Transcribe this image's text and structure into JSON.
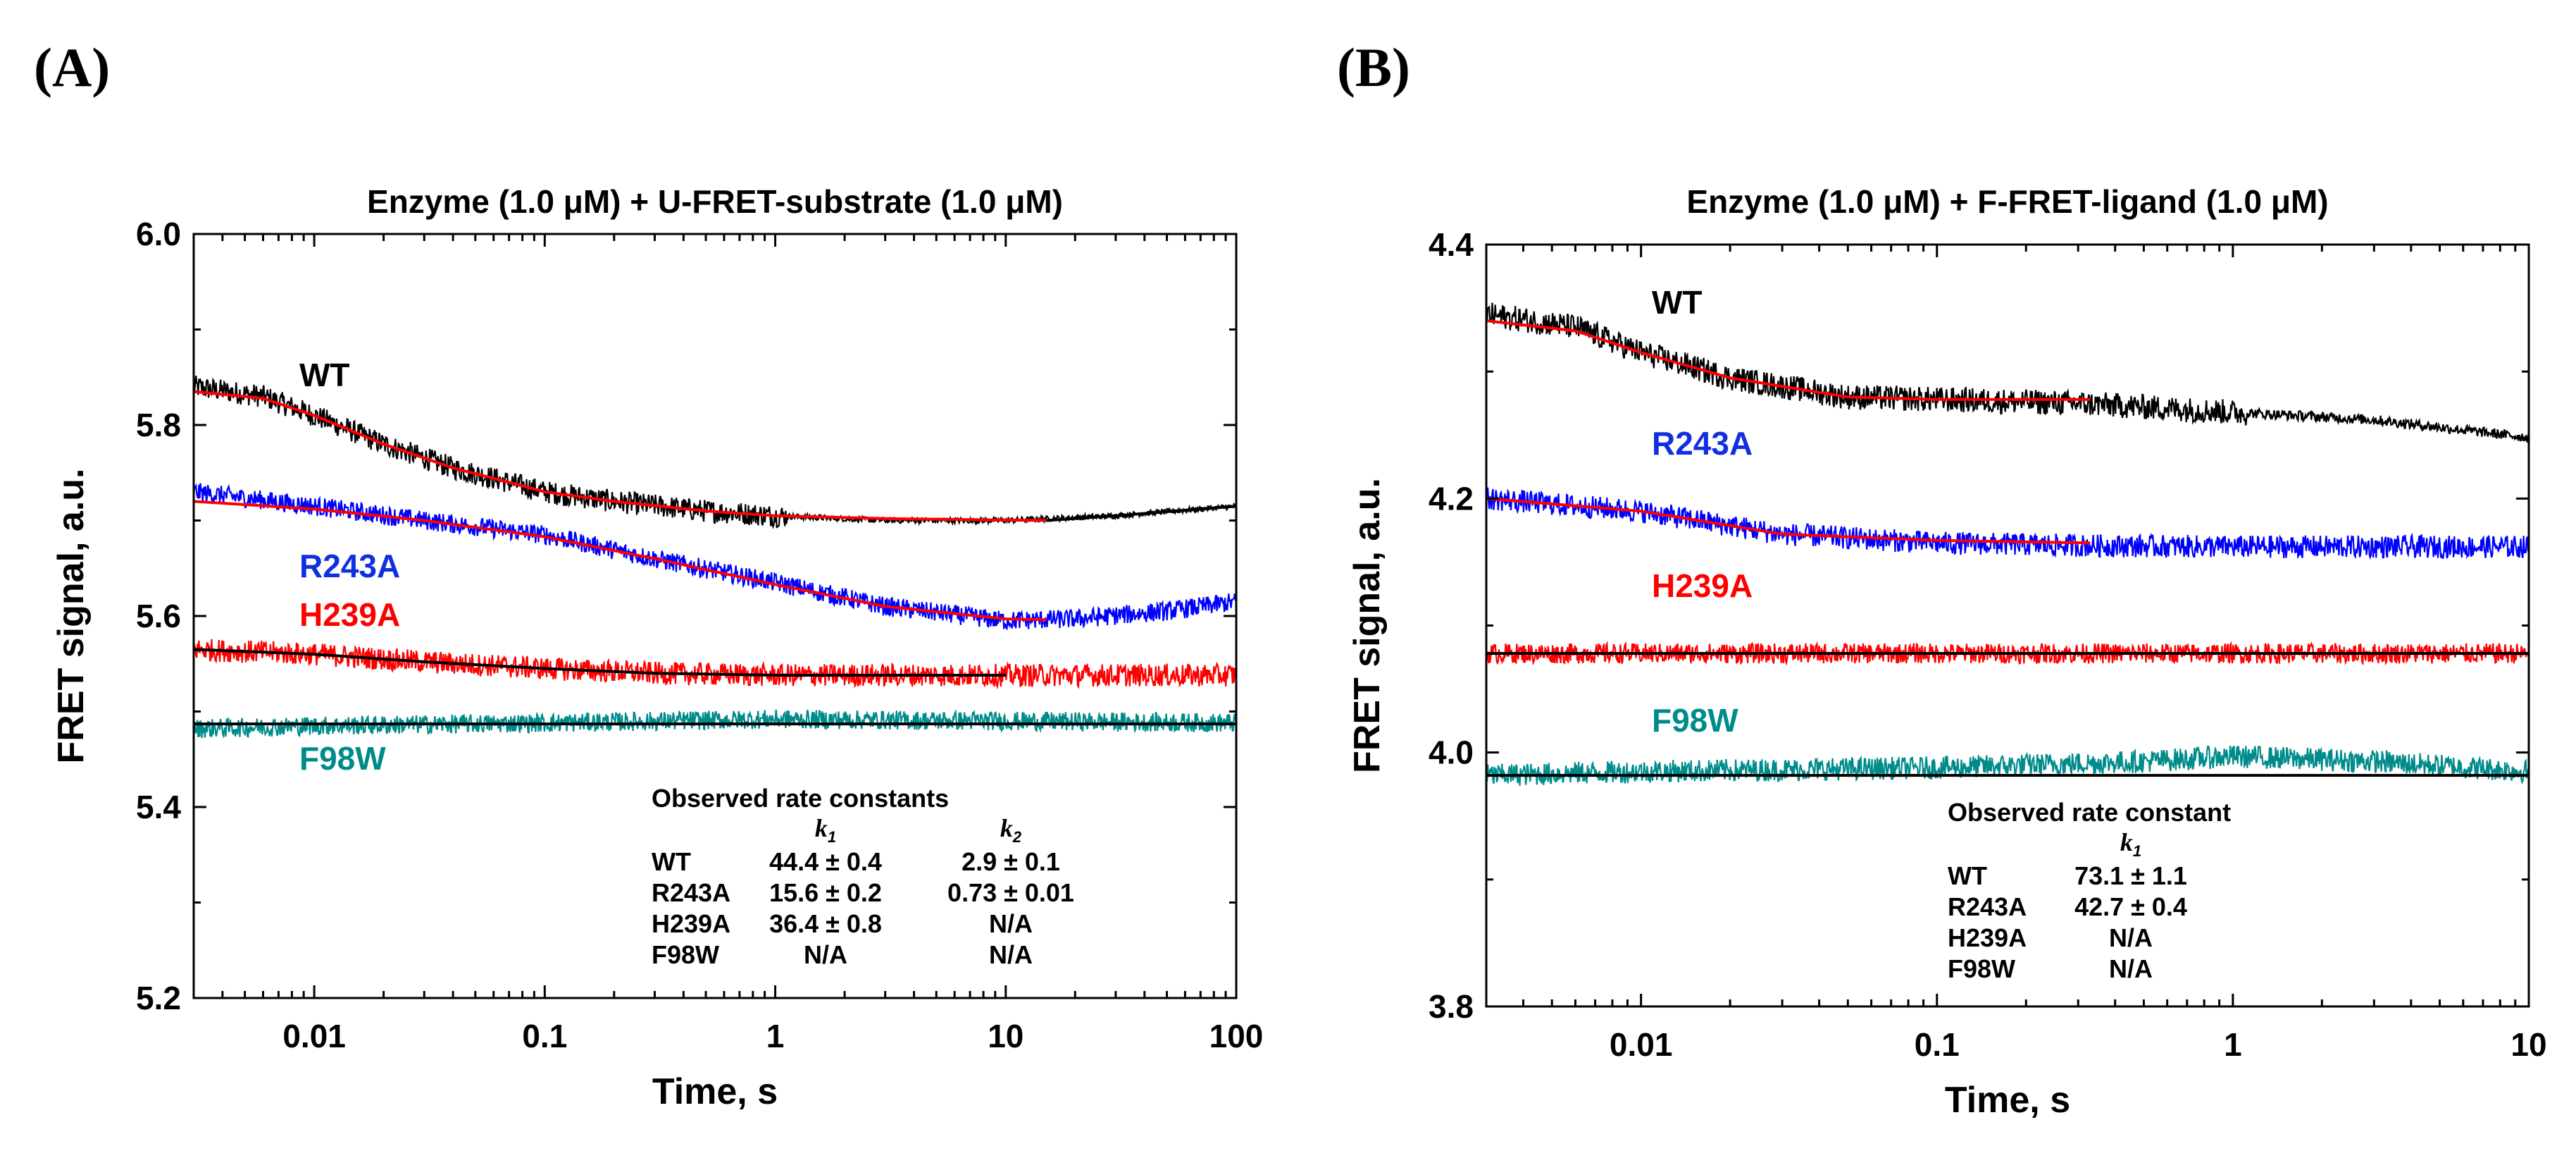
{
  "chart_data": [
    {
      "type": "line",
      "panel_label": "(A)",
      "title": "Enzyme (1.0 μM) + U-FRET-substrate (1.0 μM)",
      "xlabel": "Time, s",
      "ylabel": "FRET signal, a.u.",
      "xscale": "log",
      "xlim": [
        0.003,
        100
      ],
      "ylim": [
        5.2,
        6.0
      ],
      "xticks": [
        0.01,
        0.1,
        1,
        10,
        100
      ],
      "xtick_labels": [
        "0.01",
        "0.1",
        "1",
        "10",
        "100"
      ],
      "yticks": [
        5.2,
        5.4,
        5.6,
        5.8,
        6.0
      ],
      "ytick_labels": [
        "5.2",
        "5.4",
        "5.6",
        "5.8",
        "6.0"
      ],
      "series": [
        {
          "name": "WT",
          "color": "#000000",
          "label_color": "#000000",
          "noise": 0.012,
          "late_noise": 0.003,
          "x": [
            0.003,
            0.006,
            0.01,
            0.02,
            0.04,
            0.07,
            0.1,
            0.2,
            0.5,
            1,
            3,
            10,
            30,
            100
          ],
          "y": [
            5.84,
            5.83,
            5.81,
            5.78,
            5.755,
            5.74,
            5.73,
            5.72,
            5.71,
            5.705,
            5.7,
            5.7,
            5.705,
            5.715
          ]
        },
        {
          "name": "R243A",
          "color": "#0000ff",
          "label_color": "#1030e0",
          "noise": 0.01,
          "late_noise": 0.01,
          "x": [
            0.003,
            0.01,
            0.03,
            0.1,
            0.3,
            1,
            3,
            10,
            20,
            50,
            100
          ],
          "y": [
            5.73,
            5.715,
            5.7,
            5.685,
            5.66,
            5.635,
            5.61,
            5.595,
            5.597,
            5.605,
            5.615
          ]
        },
        {
          "name": "H239A",
          "color": "#ff0000",
          "label_color": "#ff0000",
          "noise": 0.012,
          "late_noise": 0.012,
          "x": [
            0.003,
            0.01,
            0.03,
            0.1,
            0.3,
            1,
            10,
            100
          ],
          "y": [
            5.565,
            5.56,
            5.552,
            5.545,
            5.54,
            5.538,
            5.538,
            5.538
          ]
        },
        {
          "name": "F98W",
          "color": "#008b8b",
          "label_color": "#008b8b",
          "noise": 0.01,
          "late_noise": 0.01,
          "x": [
            0.003,
            0.01,
            0.1,
            1,
            10,
            100
          ],
          "y": [
            5.482,
            5.485,
            5.488,
            5.492,
            5.49,
            5.488
          ]
        }
      ],
      "fits": [
        {
          "color": "#ff0000",
          "x": [
            0.003,
            0.006,
            0.01,
            0.02,
            0.04,
            0.07,
            0.1,
            0.2,
            0.5,
            1,
            3,
            15
          ],
          "y": [
            5.835,
            5.828,
            5.81,
            5.78,
            5.755,
            5.74,
            5.73,
            5.72,
            5.71,
            5.705,
            5.702,
            5.7
          ]
        },
        {
          "color": "#000000",
          "x": [
            15,
            30,
            100
          ],
          "y": [
            5.7,
            5.705,
            5.715
          ]
        },
        {
          "color": "#ff0000",
          "x": [
            0.003,
            0.01,
            0.03,
            0.1,
            0.3,
            1,
            3,
            10,
            15
          ],
          "y": [
            5.72,
            5.712,
            5.7,
            5.683,
            5.66,
            5.633,
            5.61,
            5.597,
            5.596
          ]
        },
        {
          "color": "#000000",
          "x": [
            0.003,
            0.01,
            0.03,
            0.1,
            0.3,
            1,
            10
          ],
          "y": [
            5.565,
            5.56,
            5.552,
            5.545,
            5.54,
            5.538,
            5.538
          ]
        },
        {
          "color": "#000000",
          "x": [
            0.003,
            100
          ],
          "y": [
            5.487,
            5.487
          ]
        }
      ],
      "rate_table": {
        "title": "Observed rate constants",
        "columns": [
          "k1",
          "k2"
        ],
        "rows": [
          {
            "name": "WT",
            "values": [
              "44.4 ± 0.4",
              "2.9 ± 0.1"
            ]
          },
          {
            "name": "R243A",
            "values": [
              "15.6 ± 0.2",
              "0.73 ± 0.01"
            ]
          },
          {
            "name": "H239A",
            "values": [
              "36.4 ± 0.8",
              "N/A"
            ]
          },
          {
            "name": "F98W",
            "values": [
              "N/A",
              "N/A"
            ]
          }
        ]
      }
    },
    {
      "type": "line",
      "panel_label": "(B)",
      "title": "Enzyme (1.0 μM) + F-FRET-ligand (1.0 μM)",
      "xlabel": "Time, s",
      "ylabel": "FRET signal, a.u.",
      "xscale": "log",
      "xlim": [
        0.003,
        10
      ],
      "ylim": [
        3.8,
        4.4
      ],
      "xticks": [
        0.01,
        0.1,
        1,
        10
      ],
      "xtick_labels": [
        "0.01",
        "0.1",
        "1",
        "10"
      ],
      "yticks": [
        3.8,
        4.0,
        4.2,
        4.4
      ],
      "ytick_labels": [
        "3.8",
        "4.0",
        "4.2",
        "4.4"
      ],
      "series": [
        {
          "name": "WT",
          "color": "#000000",
          "label_color": "#000000",
          "noise": 0.01,
          "late_noise": 0.004,
          "x": [
            0.003,
            0.006,
            0.01,
            0.02,
            0.05,
            0.1,
            0.3,
            1,
            3,
            10
          ],
          "y": [
            4.345,
            4.335,
            4.315,
            4.295,
            4.28,
            4.278,
            4.275,
            4.268,
            4.262,
            4.248
          ]
        },
        {
          "name": "R243A",
          "color": "#0000ff",
          "label_color": "#1030e0",
          "noise": 0.009,
          "late_noise": 0.009,
          "x": [
            0.003,
            0.01,
            0.03,
            0.1,
            0.3,
            1,
            10
          ],
          "y": [
            4.2,
            4.19,
            4.172,
            4.165,
            4.163,
            4.162,
            4.162
          ]
        },
        {
          "name": "H239A",
          "color": "#ff0000",
          "label_color": "#ff0000",
          "noise": 0.008,
          "late_noise": 0.008,
          "x": [
            0.003,
            0.1,
            1,
            10
          ],
          "y": [
            4.078,
            4.078,
            4.078,
            4.078
          ]
        },
        {
          "name": "F98W",
          "color": "#008b8b",
          "label_color": "#008b8b",
          "noise": 0.009,
          "late_noise": 0.009,
          "x": [
            0.003,
            0.01,
            0.1,
            0.5,
            1,
            3,
            10
          ],
          "y": [
            3.982,
            3.985,
            3.988,
            3.993,
            3.997,
            3.993,
            3.985
          ]
        }
      ],
      "fits": [
        {
          "color": "#ff0000",
          "x": [
            0.003,
            0.006,
            0.01,
            0.02,
            0.05,
            0.1,
            0.33
          ],
          "y": [
            4.34,
            4.332,
            4.315,
            4.295,
            4.28,
            4.278,
            4.278
          ]
        },
        {
          "color": "#ff0000",
          "x": [
            0.003,
            0.01,
            0.03,
            0.1,
            0.33
          ],
          "y": [
            4.2,
            4.19,
            4.172,
            4.167,
            4.165
          ]
        },
        {
          "color": "#000000",
          "x": [
            0.003,
            10
          ],
          "y": [
            4.078,
            4.078
          ]
        },
        {
          "color": "#000000",
          "x": [
            0.003,
            10
          ],
          "y": [
            3.982,
            3.982
          ]
        }
      ],
      "rate_table": {
        "title": "Observed rate constant",
        "columns": [
          "k1"
        ],
        "rows": [
          {
            "name": "WT",
            "values": [
              "73.1 ± 1.1"
            ]
          },
          {
            "name": "R243A",
            "values": [
              "42.7 ± 0.4"
            ]
          },
          {
            "name": "H239A",
            "values": [
              "N/A"
            ]
          },
          {
            "name": "F98W",
            "values": [
              "N/A"
            ]
          }
        ]
      }
    }
  ]
}
